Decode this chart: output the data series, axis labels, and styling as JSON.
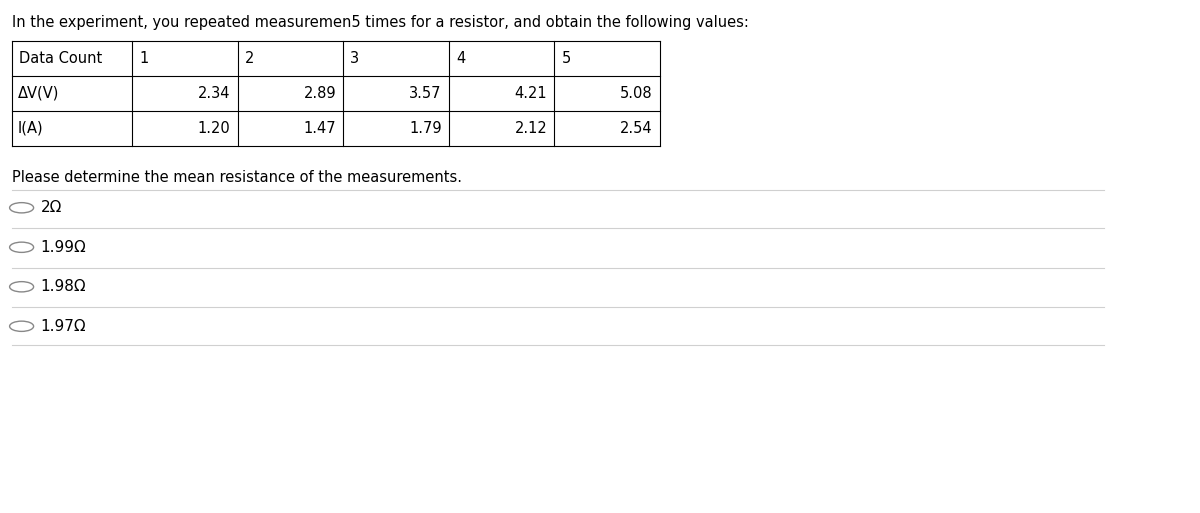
{
  "title": "In the experiment, you repeated measuremen5 times for a resistor, and obtain the following values:",
  "subtitle": "Please determine the mean resistance of the measurements.",
  "table_headers": [
    "Data Count",
    "1",
    "2",
    "3",
    "4",
    "5"
  ],
  "row1_label": "ΔV(V)",
  "row2_label": "I(A)",
  "row1_values": [
    "2.34",
    "2.89",
    "3.57",
    "4.21",
    "5.08"
  ],
  "row2_values": [
    "1.20",
    "1.47",
    "1.79",
    "2.12",
    "2.54"
  ],
  "options": [
    "2Ω",
    "1.99Ω",
    "1.98Ω",
    "1.97Ω"
  ],
  "bg_color": "#ffffff",
  "text_color": "#000000",
  "table_border_color": "#000000",
  "title_fontsize": 10.5,
  "body_fontsize": 10.5,
  "option_fontsize": 11
}
